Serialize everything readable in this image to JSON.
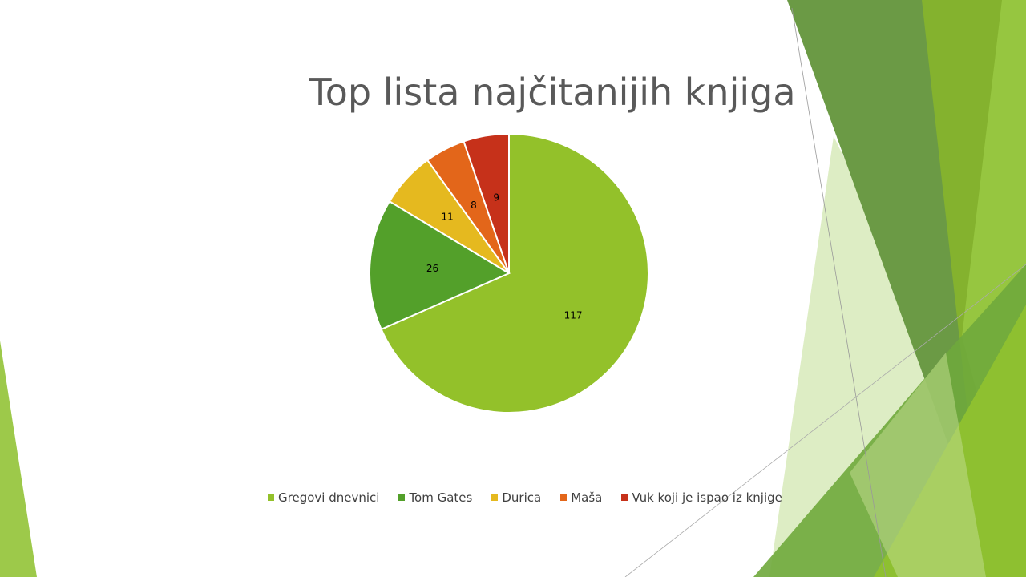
{
  "slide": {
    "title": "Top lista najčitanijih knjiga"
  },
  "colors": {
    "accent_light": "#93C12A",
    "accent_dark": "#4F9A25",
    "accent_mid": "#6B963F"
  },
  "chart_data": {
    "type": "pie",
    "title": "Top lista najčitanijih knjiga",
    "categories": [
      "Gregovi dnevnici",
      "Tom Gates",
      "Durica",
      "Maša",
      "Vuk koji je ispao iz knjige"
    ],
    "values": [
      117,
      26,
      11,
      8,
      9
    ],
    "colors": [
      "#93C12A",
      "#53A02A",
      "#E5B91F",
      "#E3661A",
      "#C6311A"
    ],
    "data_labels": [
      "117",
      "26",
      "11",
      "8",
      "9"
    ],
    "legend_position": "bottom"
  }
}
